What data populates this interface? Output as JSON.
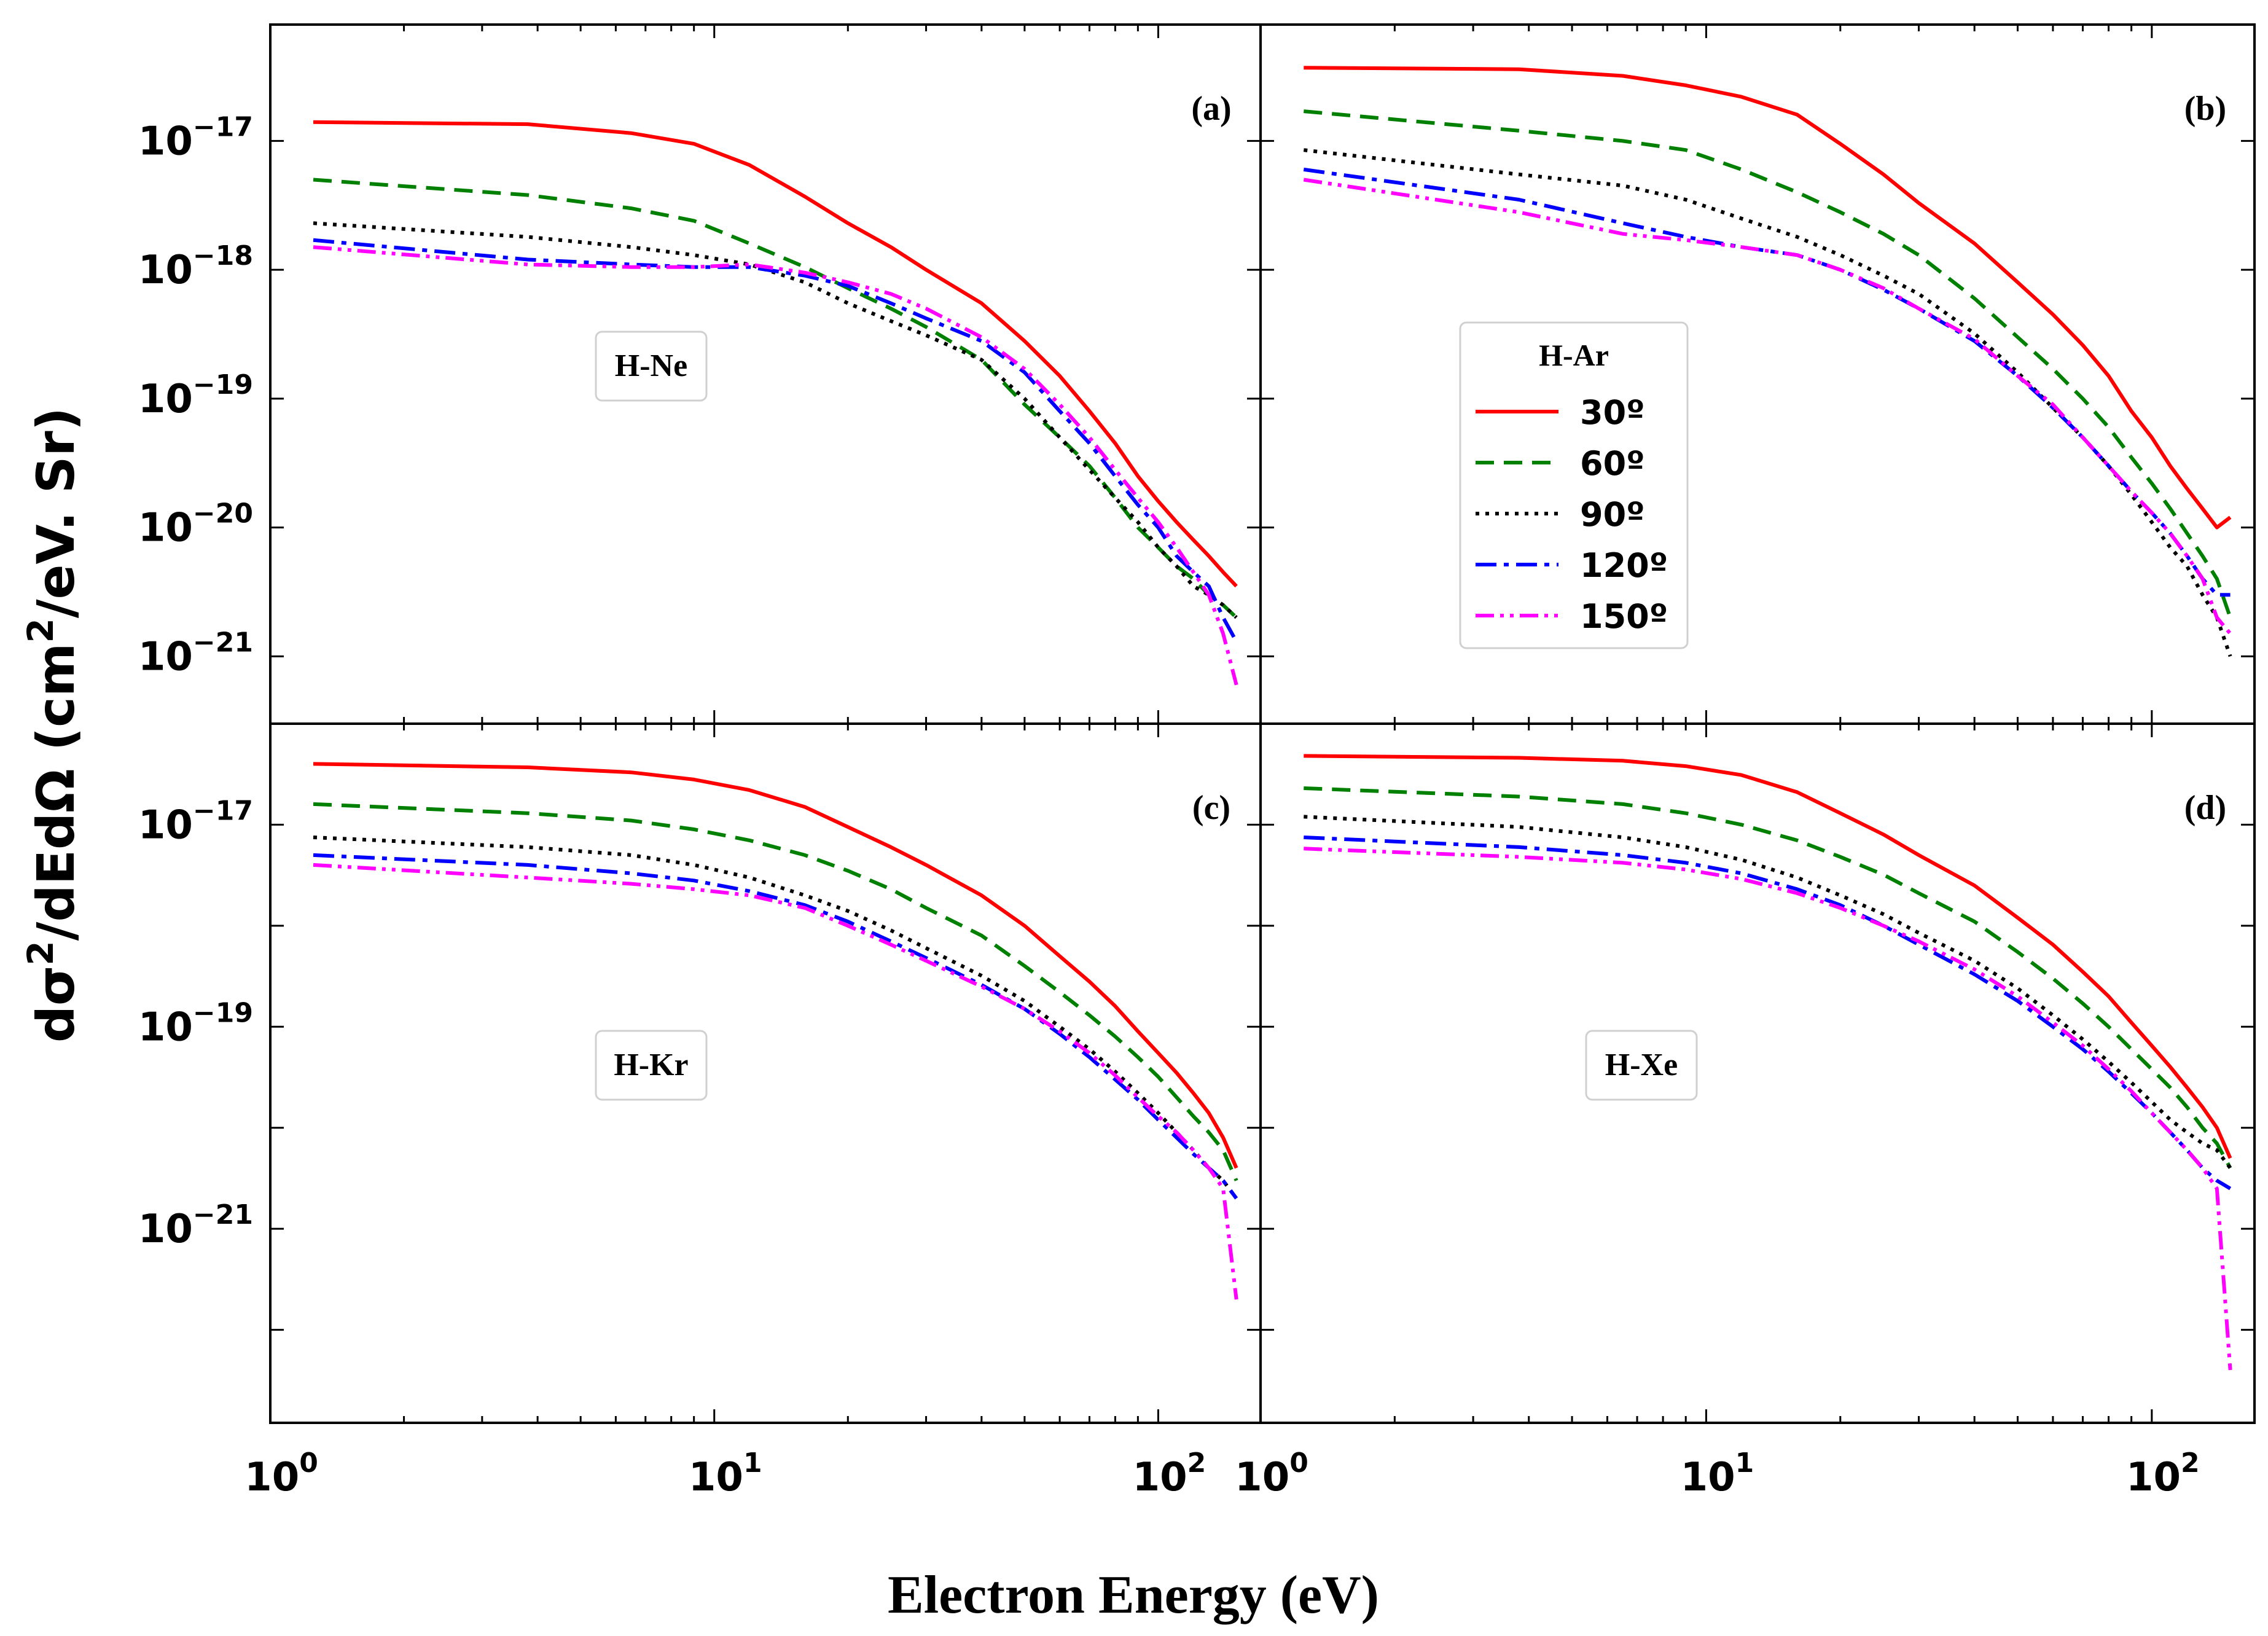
{
  "chart_data": {
    "type": "line",
    "xlabel": "Electron Energy (eV)",
    "ylabel_main": "dσ",
    "ylabel_sup": "2",
    "ylabel_mid": "/dEdΩ (cm",
    "ylabel_sup2": "2",
    "ylabel_end": "/eV. Sr)",
    "x_scale": "log",
    "y_scale": "log",
    "xlim": [
      1,
      170
    ],
    "x_ticks": [
      {
        "value": 1,
        "base": "10",
        "exp": "0"
      },
      {
        "value": 10,
        "base": "10",
        "exp": "1"
      },
      {
        "value": 100,
        "base": "10",
        "exp": "2"
      }
    ],
    "x": [
      1.25,
      3.8,
      6.5,
      9.0,
      12,
      16,
      20,
      25,
      30,
      40,
      50,
      60,
      70,
      80,
      90,
      100,
      110,
      120,
      130,
      140,
      150
    ],
    "legend_entries": [
      {
        "label": "30º",
        "color": "#ff0000",
        "dash": ""
      },
      {
        "label": "60º",
        "color": "#008000",
        "dash": "30 16"
      },
      {
        "label": "90º",
        "color": "#000000",
        "dash": "6 10"
      },
      {
        "label": "120º",
        "color": "#0000ff",
        "dash": "34 12 8 12"
      },
      {
        "label": "150º",
        "color": "#ff00ff",
        "dash": "30 10 6 10 6 10"
      }
    ],
    "panels": [
      {
        "id": "a",
        "label": "(a)",
        "gas": "H-Ne",
        "show_legend": false,
        "ylim": [
          3e-22,
          8e-17
        ],
        "y_ticks": [
          {
            "value": 1e-17,
            "base": "10",
            "exp": "−17"
          },
          {
            "value": 1e-18,
            "base": "10",
            "exp": "−18"
          },
          {
            "value": 1e-19,
            "base": "10",
            "exp": "−19"
          },
          {
            "value": 1e-20,
            "base": "10",
            "exp": "−20"
          },
          {
            "value": 1e-21,
            "base": "10",
            "exp": "−21"
          }
        ],
        "series": [
          {
            "name": "30º",
            "values": [
              1.4e-17,
              1.35e-17,
              1.15e-17,
              9.5e-18,
              6.5e-18,
              3.7e-18,
              2.3e-18,
              1.5e-18,
              1e-18,
              5.5e-19,
              2.8e-19,
              1.5e-19,
              8e-20,
              4.5e-20,
              2.5e-20,
              1.6e-20,
              1.1e-20,
              8e-21,
              6e-21,
              4.5e-21,
              3.5e-21
            ]
          },
          {
            "name": "60º",
            "values": [
              5e-18,
              3.8e-18,
              3e-18,
              2.4e-18,
              1.6e-18,
              1.05e-18,
              7.2e-19,
              5e-19,
              3.6e-19,
              2e-19,
              9e-20,
              5e-20,
              3e-20,
              1.7e-20,
              1e-20,
              7e-21,
              5e-21,
              4e-21,
              3e-21,
              2.5e-21,
              2e-21
            ]
          },
          {
            "name": "90º",
            "values": [
              2.3e-18,
              1.8e-18,
              1.5e-18,
              1.3e-18,
              1.1e-18,
              8e-19,
              5.5e-19,
              4e-19,
              3.1e-19,
              2e-19,
              1e-19,
              5e-20,
              2.8e-20,
              1.7e-20,
              1.1e-20,
              7e-21,
              5e-21,
              3.5e-21,
              3e-21,
              2.5e-21,
              2e-21
            ]
          },
          {
            "name": "120º",
            "values": [
              1.7e-18,
              1.2e-18,
              1.1e-18,
              1.05e-18,
              1.05e-18,
              9e-19,
              7.5e-19,
              5.5e-19,
              4.2e-19,
              2.8e-19,
              1.6e-19,
              8e-20,
              4.5e-20,
              2.5e-20,
              1.5e-20,
              1e-20,
              6e-21,
              4.5e-21,
              3.5e-21,
              2e-21,
              1.3e-21
            ]
          },
          {
            "name": "150º",
            "values": [
              1.5e-18,
              1.1e-18,
              1.05e-18,
              1.05e-18,
              1.1e-18,
              9.5e-19,
              8e-19,
              6.5e-19,
              5e-19,
              3e-19,
              1.7e-19,
              9e-20,
              5e-20,
              2.8e-20,
              1.7e-20,
              1.1e-20,
              7e-21,
              4.5e-21,
              3e-21,
              1.5e-21,
              6e-22
            ]
          }
        ]
      },
      {
        "id": "b",
        "label": "(b)",
        "gas": "H-Ar",
        "show_legend": true,
        "ylim": [
          3e-22,
          8e-17
        ],
        "y_ticks": [],
        "series": [
          {
            "name": "30º",
            "values": [
              3.7e-17,
              3.6e-17,
              3.2e-17,
              2.7e-17,
              2.2e-17,
              1.6e-17,
              9.5e-18,
              5.5e-18,
              3.3e-18,
              1.6e-18,
              8e-19,
              4.5e-19,
              2.6e-19,
              1.5e-19,
              8e-20,
              5e-20,
              3e-20,
              2e-20,
              1.4e-20,
              1e-20,
              1.2e-20
            ]
          },
          {
            "name": "60º",
            "values": [
              1.7e-17,
              1.2e-17,
              1e-17,
              8.5e-18,
              6e-18,
              4e-18,
              2.8e-18,
              1.9e-18,
              1.3e-18,
              6e-19,
              3e-19,
              1.7e-19,
              1e-19,
              6e-20,
              3.5e-20,
              2.2e-20,
              1.4e-20,
              9e-21,
              6e-21,
              4e-21,
              2e-21
            ]
          },
          {
            "name": "90º",
            "values": [
              8.5e-18,
              5.5e-18,
              4.5e-18,
              3.5e-18,
              2.5e-18,
              1.8e-18,
              1.3e-18,
              9e-19,
              6.5e-19,
              3.2e-19,
              1.6e-19,
              8.5e-20,
              5e-20,
              3e-20,
              1.8e-20,
              1.1e-20,
              7e-21,
              5e-21,
              3e-21,
              2e-21,
              1e-21
            ]
          },
          {
            "name": "120º",
            "values": [
              6e-18,
              3.5e-18,
              2.3e-18,
              1.8e-18,
              1.5e-18,
              1.3e-18,
              1e-18,
              7e-19,
              5e-19,
              2.8e-19,
              1.5e-19,
              8.5e-20,
              5e-20,
              3e-20,
              1.9e-20,
              1.3e-20,
              9e-21,
              6e-21,
              4e-21,
              3e-21,
              3e-21
            ]
          },
          {
            "name": "150º",
            "values": [
              5e-18,
              2.8e-18,
              1.9e-18,
              1.7e-18,
              1.5e-18,
              1.3e-18,
              1e-18,
              7.2e-19,
              5e-19,
              2.9e-19,
              1.5e-19,
              9e-20,
              5e-20,
              3e-20,
              1.9e-20,
              1.3e-20,
              9e-21,
              6e-21,
              4e-21,
              2e-21,
              1.5e-21
            ]
          }
        ]
      },
      {
        "id": "c",
        "label": "(c)",
        "gas": "H-Kr",
        "show_legend": false,
        "ylim": [
          1.2e-23,
          1e-16
        ],
        "y_ticks": [
          {
            "value": 1e-17,
            "base": "10",
            "exp": "−17"
          },
          {
            "value": 1e-19,
            "base": "10",
            "exp": "−19"
          },
          {
            "value": 1e-21,
            "base": "10",
            "exp": "−21"
          }
        ],
        "series": [
          {
            "name": "30º",
            "values": [
              4e-17,
              3.7e-17,
              3.3e-17,
              2.8e-17,
              2.2e-17,
              1.5e-17,
              9.5e-18,
              6e-18,
              4e-18,
              2e-18,
              1e-18,
              5e-19,
              2.8e-19,
              1.6e-19,
              9e-20,
              5.5e-20,
              3.5e-20,
              2.2e-20,
              1.4e-20,
              8e-21,
              4e-21
            ]
          },
          {
            "name": "60º",
            "values": [
              1.6e-17,
              1.3e-17,
              1.1e-17,
              9e-18,
              7e-18,
              5e-18,
              3.5e-18,
              2.3e-18,
              1.5e-18,
              8e-19,
              4e-19,
              2.2e-19,
              1.3e-19,
              8e-20,
              5e-20,
              3.2e-20,
              2e-20,
              1.3e-20,
              9e-21,
              6e-21,
              3e-21
            ]
          },
          {
            "name": "90º",
            "values": [
              7.5e-18,
              6e-18,
              5e-18,
              4e-18,
              3e-18,
              2e-18,
              1.4e-18,
              9e-19,
              6e-19,
              3.2e-19,
              1.8e-19,
              1e-19,
              6e-20,
              3.6e-20,
              2.2e-20,
              1.4e-20,
              9e-21,
              6e-21,
              4e-21,
              3e-21,
              2e-21
            ]
          },
          {
            "name": "120º",
            "values": [
              5e-18,
              4e-18,
              3.3e-18,
              2.8e-18,
              2.2e-18,
              1.6e-18,
              1.1e-18,
              7e-19,
              4.8e-19,
              2.6e-19,
              1.5e-19,
              8.5e-20,
              5e-20,
              3e-20,
              1.9e-20,
              1.2e-20,
              8e-21,
              5.5e-21,
              4e-21,
              3e-21,
              2e-21
            ]
          },
          {
            "name": "150º",
            "values": [
              4e-18,
              3e-18,
              2.6e-18,
              2.3e-18,
              2e-18,
              1.5e-18,
              1e-18,
              6.5e-19,
              4.5e-19,
              2.5e-19,
              1.5e-19,
              9e-20,
              5.5e-20,
              3.3e-20,
              2e-20,
              1.3e-20,
              9e-21,
              6e-21,
              4e-21,
              2.5e-21,
              2e-22
            ]
          }
        ]
      },
      {
        "id": "d",
        "label": "(d)",
        "gas": "H-Xe",
        "show_legend": false,
        "ylim": [
          1.2e-23,
          1e-16
        ],
        "y_ticks": [],
        "series": [
          {
            "name": "30º",
            "values": [
              4.8e-17,
              4.6e-17,
              4.3e-17,
              3.8e-17,
              3.1e-17,
              2.1e-17,
              1.3e-17,
              8e-18,
              5e-18,
              2.5e-18,
              1.2e-18,
              6.5e-19,
              3.5e-19,
              2e-19,
              1.1e-19,
              6.5e-20,
              4e-20,
              2.5e-20,
              1.6e-20,
              1e-20,
              5e-21
            ]
          },
          {
            "name": "60º",
            "values": [
              2.3e-17,
              1.9e-17,
              1.6e-17,
              1.3e-17,
              1e-17,
              7e-18,
              4.8e-18,
              3.2e-18,
              2.1e-18,
              1.1e-18,
              5.5e-19,
              3e-19,
              1.7e-19,
              1e-19,
              6e-20,
              3.8e-20,
              2.5e-20,
              1.6e-20,
              1e-20,
              7e-21,
              4e-21
            ]
          },
          {
            "name": "90º",
            "values": [
              1.2e-17,
              9.5e-18,
              7.5e-18,
              6e-18,
              4.5e-18,
              3e-18,
              2e-18,
              1.3e-18,
              8.5e-19,
              4.5e-19,
              2.4e-19,
              1.3e-19,
              7.5e-20,
              4.5e-20,
              2.8e-20,
              1.8e-20,
              1.2e-20,
              9e-21,
              7e-21,
              6e-21,
              4e-21
            ]
          },
          {
            "name": "120º",
            "values": [
              7.5e-18,
              6e-18,
              5e-18,
              4.2e-18,
              3.3e-18,
              2.3e-18,
              1.6e-18,
              1e-18,
              6.5e-19,
              3.3e-19,
              1.8e-19,
              1e-19,
              6e-20,
              3.6e-20,
              2.2e-20,
              1.4e-20,
              9e-21,
              6e-21,
              4e-21,
              3e-21,
              2.5e-21
            ]
          },
          {
            "name": "150º",
            "values": [
              5.8e-18,
              4.8e-18,
              4.2e-18,
              3.6e-18,
              2.9e-18,
              2.1e-18,
              1.5e-18,
              1e-18,
              7e-19,
              3.7e-19,
              2e-19,
              1.1e-19,
              6.5e-20,
              3.8e-20,
              2.3e-20,
              1.4e-20,
              9e-21,
              6e-21,
              4e-21,
              2.5e-21,
              4e-23
            ]
          }
        ]
      }
    ]
  }
}
